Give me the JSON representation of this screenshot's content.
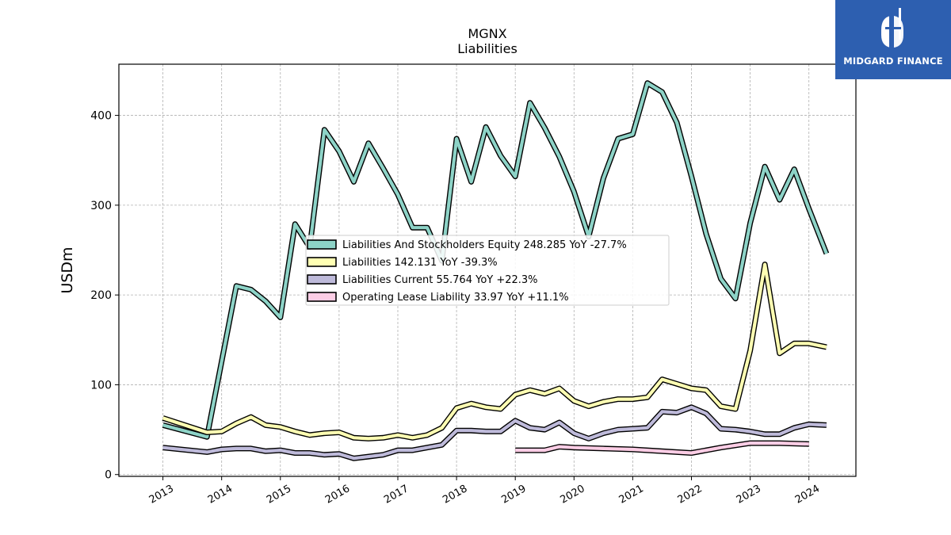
{
  "chart_data": {
    "type": "line",
    "title": "MGNX",
    "subtitle": "Liabilities",
    "ylabel": "USDm",
    "xlabel": "",
    "ylim": [
      -2,
      457
    ],
    "xlim": [
      2012.25,
      2024.8
    ],
    "yticks": [
      0,
      100,
      200,
      300,
      400
    ],
    "xticks": [
      2013,
      2014,
      2015,
      2016,
      2017,
      2018,
      2019,
      2020,
      2021,
      2022,
      2023,
      2024
    ],
    "grid": true,
    "legend_position": "center",
    "series": [
      {
        "name": "Liabilities And Stockholders Equity",
        "legend_label": "Liabilities And Stockholders Equity  248.285 YoY -27.7%",
        "color": "#8dd3c7",
        "x": [
          2013.0,
          2013.75,
          2014.25,
          2014.5,
          2014.75,
          2015.0,
          2015.25,
          2015.5,
          2015.75,
          2016.0,
          2016.25,
          2016.5,
          2016.75,
          2017.0,
          2017.25,
          2017.5,
          2017.75,
          2018.0,
          2018.25,
          2018.5,
          2018.75,
          2019.0,
          2019.25,
          2019.5,
          2019.75,
          2020.0,
          2020.25,
          2020.5,
          2020.75,
          2021.0,
          2021.25,
          2021.5,
          2021.75,
          2022.0,
          2022.25,
          2022.5,
          2022.75,
          2023.0,
          2023.25,
          2023.5,
          2023.75,
          2024.0,
          2024.3
        ],
        "values": [
          55,
          42,
          210,
          206,
          193,
          175,
          279,
          253,
          384,
          360,
          326,
          369,
          341,
          312,
          275,
          275,
          238,
          374,
          326,
          387,
          355,
          332,
          414,
          386,
          354,
          315,
          265,
          330,
          374,
          379,
          436,
          426,
          392,
          332,
          268,
          218,
          196,
          280,
          343,
          306,
          340,
          296,
          246
        ]
      },
      {
        "name": "Liabilities",
        "legend_label": "Liabilities  142.131 YoY -39.3%",
        "color": "#ffffb3",
        "x": [
          2013.0,
          2013.75,
          2014.0,
          2014.25,
          2014.5,
          2014.75,
          2015.0,
          2015.25,
          2015.5,
          2015.75,
          2016.0,
          2016.25,
          2016.5,
          2016.75,
          2017.0,
          2017.25,
          2017.5,
          2017.75,
          2018.0,
          2018.25,
          2018.5,
          2018.75,
          2019.0,
          2019.25,
          2019.5,
          2019.75,
          2020.0,
          2020.25,
          2020.5,
          2020.75,
          2021.0,
          2021.25,
          2021.5,
          2021.75,
          2022.0,
          2022.25,
          2022.5,
          2022.75,
          2023.0,
          2023.25,
          2023.5,
          2023.75,
          2024.0,
          2024.3
        ],
        "values": [
          63,
          47,
          48,
          57,
          64,
          55,
          53,
          48,
          44,
          46,
          47,
          41,
          40,
          41,
          44,
          41,
          44,
          52,
          74,
          79,
          75,
          73,
          89,
          94,
          90,
          96,
          82,
          76,
          81,
          84,
          84,
          86,
          106,
          101,
          96,
          94,
          76,
          73,
          138,
          234,
          135,
          146,
          146,
          142
        ]
      },
      {
        "name": "Liabilities Current",
        "legend_label": "Liabilities Current  55.764 YoY +22.3%",
        "color": "#bebada",
        "x": [
          2013.0,
          2013.75,
          2014.0,
          2014.25,
          2014.5,
          2014.75,
          2015.0,
          2015.25,
          2015.5,
          2015.75,
          2016.0,
          2016.25,
          2016.5,
          2016.75,
          2017.0,
          2017.25,
          2017.5,
          2017.75,
          2018.0,
          2018.25,
          2018.5,
          2018.75,
          2019.0,
          2019.25,
          2019.5,
          2019.75,
          2020.0,
          2020.25,
          2020.5,
          2020.75,
          2021.0,
          2021.25,
          2021.5,
          2021.75,
          2022.0,
          2022.25,
          2022.5,
          2022.75,
          2023.0,
          2023.25,
          2023.5,
          2023.75,
          2024.0,
          2024.3
        ],
        "values": [
          30,
          25,
          28,
          29,
          29,
          26,
          27,
          24,
          24,
          22,
          23,
          18,
          20,
          22,
          27,
          27,
          30,
          33,
          49,
          49,
          48,
          48,
          60,
          52,
          50,
          58,
          46,
          40,
          46,
          50,
          51,
          52,
          70,
          69,
          75,
          68,
          51,
          50,
          48,
          45,
          45,
          52,
          56,
          55
        ]
      },
      {
        "name": "Operating Lease Liability",
        "legend_label": "Operating Lease Liability  33.97 YoY +11.1%",
        "color": "#fccde5",
        "x": [
          2019.0,
          2019.5,
          2019.75,
          2020.0,
          2020.5,
          2021.0,
          2021.5,
          2022.0,
          2022.5,
          2023.0,
          2023.5,
          2024.0
        ],
        "values": [
          27,
          27,
          31,
          30,
          29,
          28,
          26,
          24,
          30,
          35,
          35,
          34
        ]
      }
    ]
  },
  "logo": {
    "text": "MIDGARD FINANCE"
  }
}
